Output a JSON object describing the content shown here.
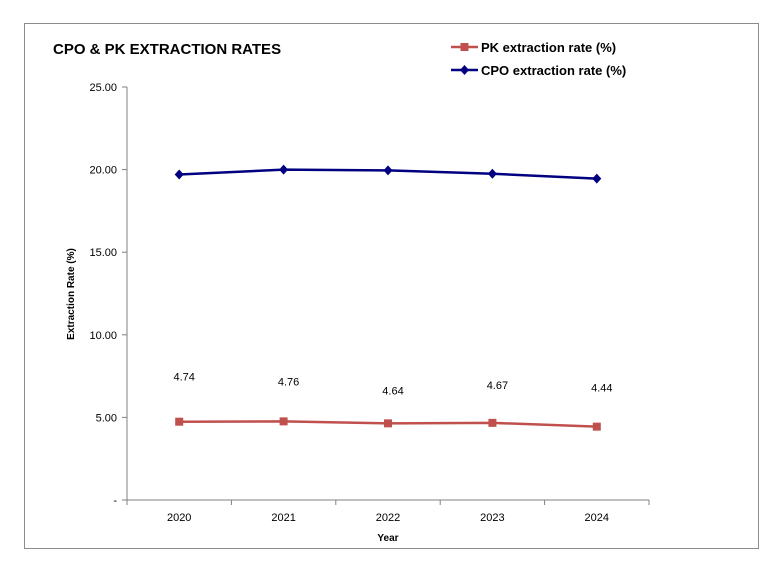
{
  "chart_data": {
    "type": "line",
    "title": "CPO & PK EXTRACTION RATES",
    "xlabel": "Year",
    "ylabel": "Extraction Rate (%)",
    "categories": [
      "2020",
      "2021",
      "2022",
      "2023",
      "2024"
    ],
    "ylim": [
      0,
      25
    ],
    "y_ticks": [
      0,
      5,
      10,
      15,
      20,
      25
    ],
    "y_tick_labels": [
      "-",
      "5.00",
      "10.00",
      "15.00",
      "20.00",
      "25.00"
    ],
    "grid": false,
    "legend_position": "top-right",
    "series": [
      {
        "name": "PK extraction rate (%)",
        "color": "#c0504d",
        "marker": "square",
        "values": [
          4.74,
          4.76,
          4.64,
          4.67,
          4.44
        ],
        "data_labels": [
          "4.74",
          "4.76",
          "4.64",
          "4.67",
          "4.44"
        ]
      },
      {
        "name": "CPO extraction rate (%)",
        "color": "#000080",
        "marker": "diamond",
        "values": [
          19.7,
          20.0,
          19.95,
          19.75,
          19.45
        ]
      }
    ]
  }
}
